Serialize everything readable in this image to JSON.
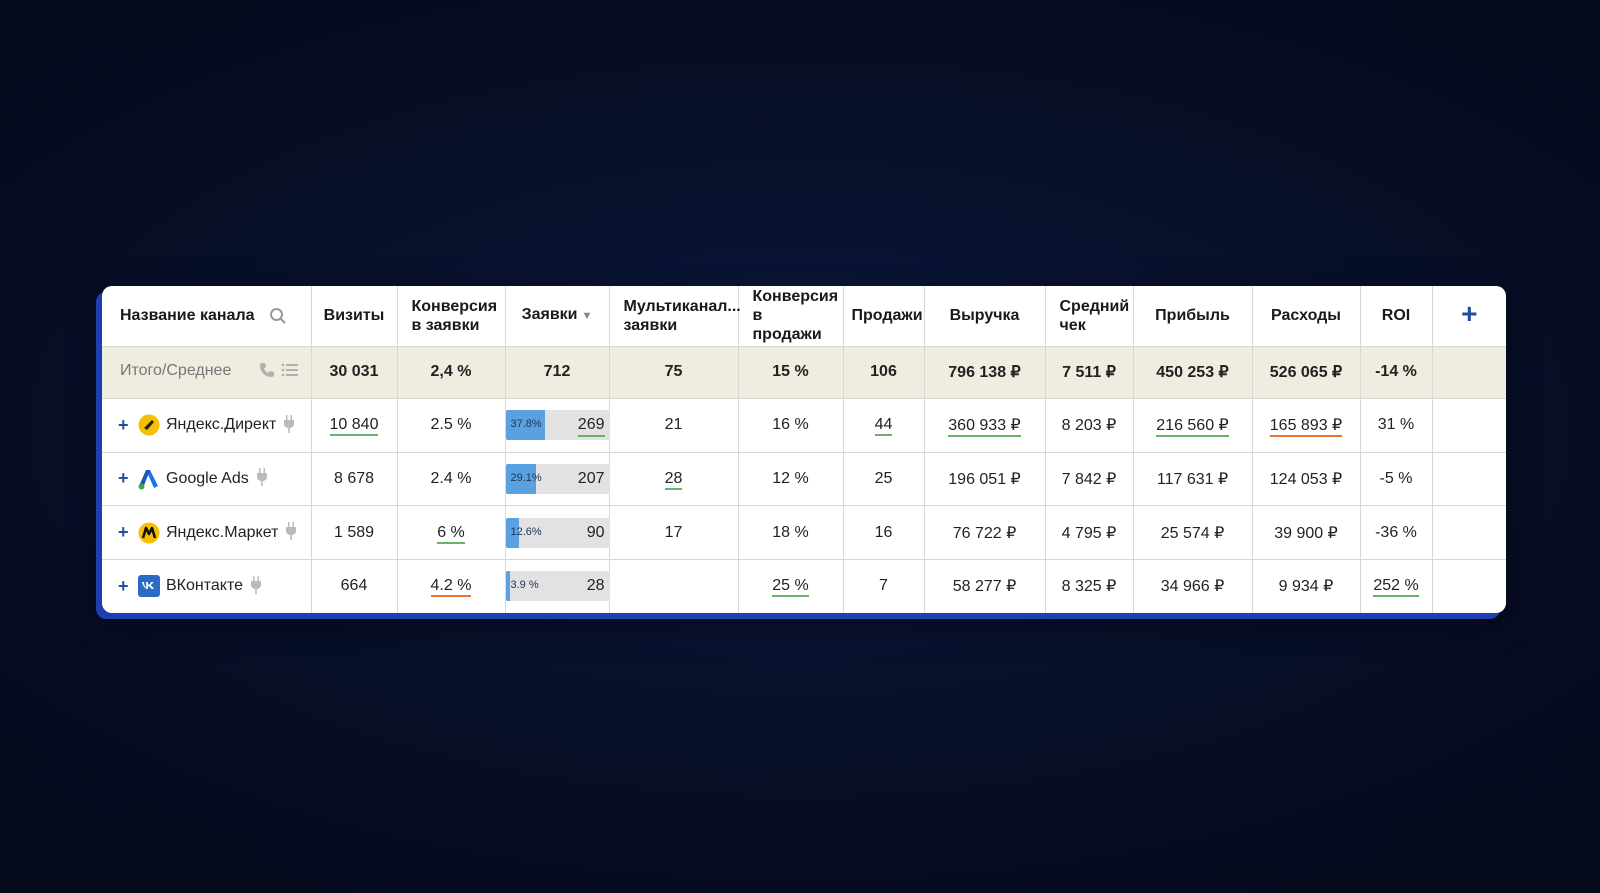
{
  "header": {
    "channel": "Название канала",
    "visits": "Визиты",
    "conv_leads": "Конверсия в заявки",
    "leads": "Заявки",
    "multichannel": "Мультиканал... заявки",
    "conv_sales": "Конверсия в продажи",
    "sales": "Продажи",
    "revenue": "Выручка",
    "avg_check": "Средний чек",
    "profit": "Прибыль",
    "expenses": "Расходы",
    "roi": "ROI"
  },
  "totals": {
    "label": "Итого/Среднее",
    "visits": "30 031",
    "conv_leads": "2,4 %",
    "leads": "712",
    "multichannel": "75",
    "conv_sales": "15 %",
    "sales": "106",
    "revenue": "796 138 ₽",
    "avg_check": "7 511 ₽",
    "profit": "450 253 ₽",
    "expenses": "526 065 ₽",
    "roi": "-14 %"
  },
  "rows": [
    {
      "name": "Яндекс.Директ",
      "visits": "10 840",
      "conv_leads": "2.5 %",
      "leads_pct": "37.8%",
      "leads_fill": 0.378,
      "leads": "269",
      "multichannel": "21",
      "conv_sales": "16 %",
      "sales": "44",
      "revenue": "360 933 ₽",
      "avg_check": "8 203 ₽",
      "profit": "216 560 ₽",
      "expenses": "165 893 ₽",
      "roi": "31 %"
    },
    {
      "name": "Google Ads",
      "visits": "8 678",
      "conv_leads": "2.4 %",
      "leads_pct": "29.1%",
      "leads_fill": 0.291,
      "leads": "207",
      "multichannel": "28",
      "conv_sales": "12 %",
      "sales": "25",
      "revenue": "196 051 ₽",
      "avg_check": "7 842 ₽",
      "profit": "117 631 ₽",
      "expenses": "124 053 ₽",
      "roi": "-5 %"
    },
    {
      "name": "Яндекс.Маркет",
      "visits": "1 589",
      "conv_leads": "6 %",
      "leads_pct": "12.6%",
      "leads_fill": 0.126,
      "leads": "90",
      "multichannel": "17",
      "conv_sales": "18 %",
      "sales": "16",
      "revenue": "76 722 ₽",
      "avg_check": "4 795 ₽",
      "profit": "25 574 ₽",
      "expenses": "39 900 ₽",
      "roi": "-36 %"
    },
    {
      "name": "ВКонтакте",
      "visits": "664",
      "conv_leads": "4.2 %",
      "leads_pct": "3.9 %",
      "leads_fill": 0.039,
      "leads": "28",
      "multichannel": "",
      "conv_sales": "25 %",
      "sales": "7",
      "revenue": "58 277 ₽",
      "avg_check": "8 325 ₽",
      "profit": "34 966 ₽",
      "expenses": "9 934 ₽",
      "roi": "252 %"
    }
  ],
  "icons": {
    "search": "search-icon",
    "add_column": "plus-icon",
    "phone": "phone-icon",
    "list": "list-icon",
    "expand": "plus-icon",
    "plug": "plug-icon"
  },
  "colors": {
    "accent": "#1f4f9c",
    "bar_fill": "#5aa1e0",
    "underline_positive": "#6bb06b",
    "underline_negative": "#e9742b",
    "totals_bg": "#efece0"
  }
}
